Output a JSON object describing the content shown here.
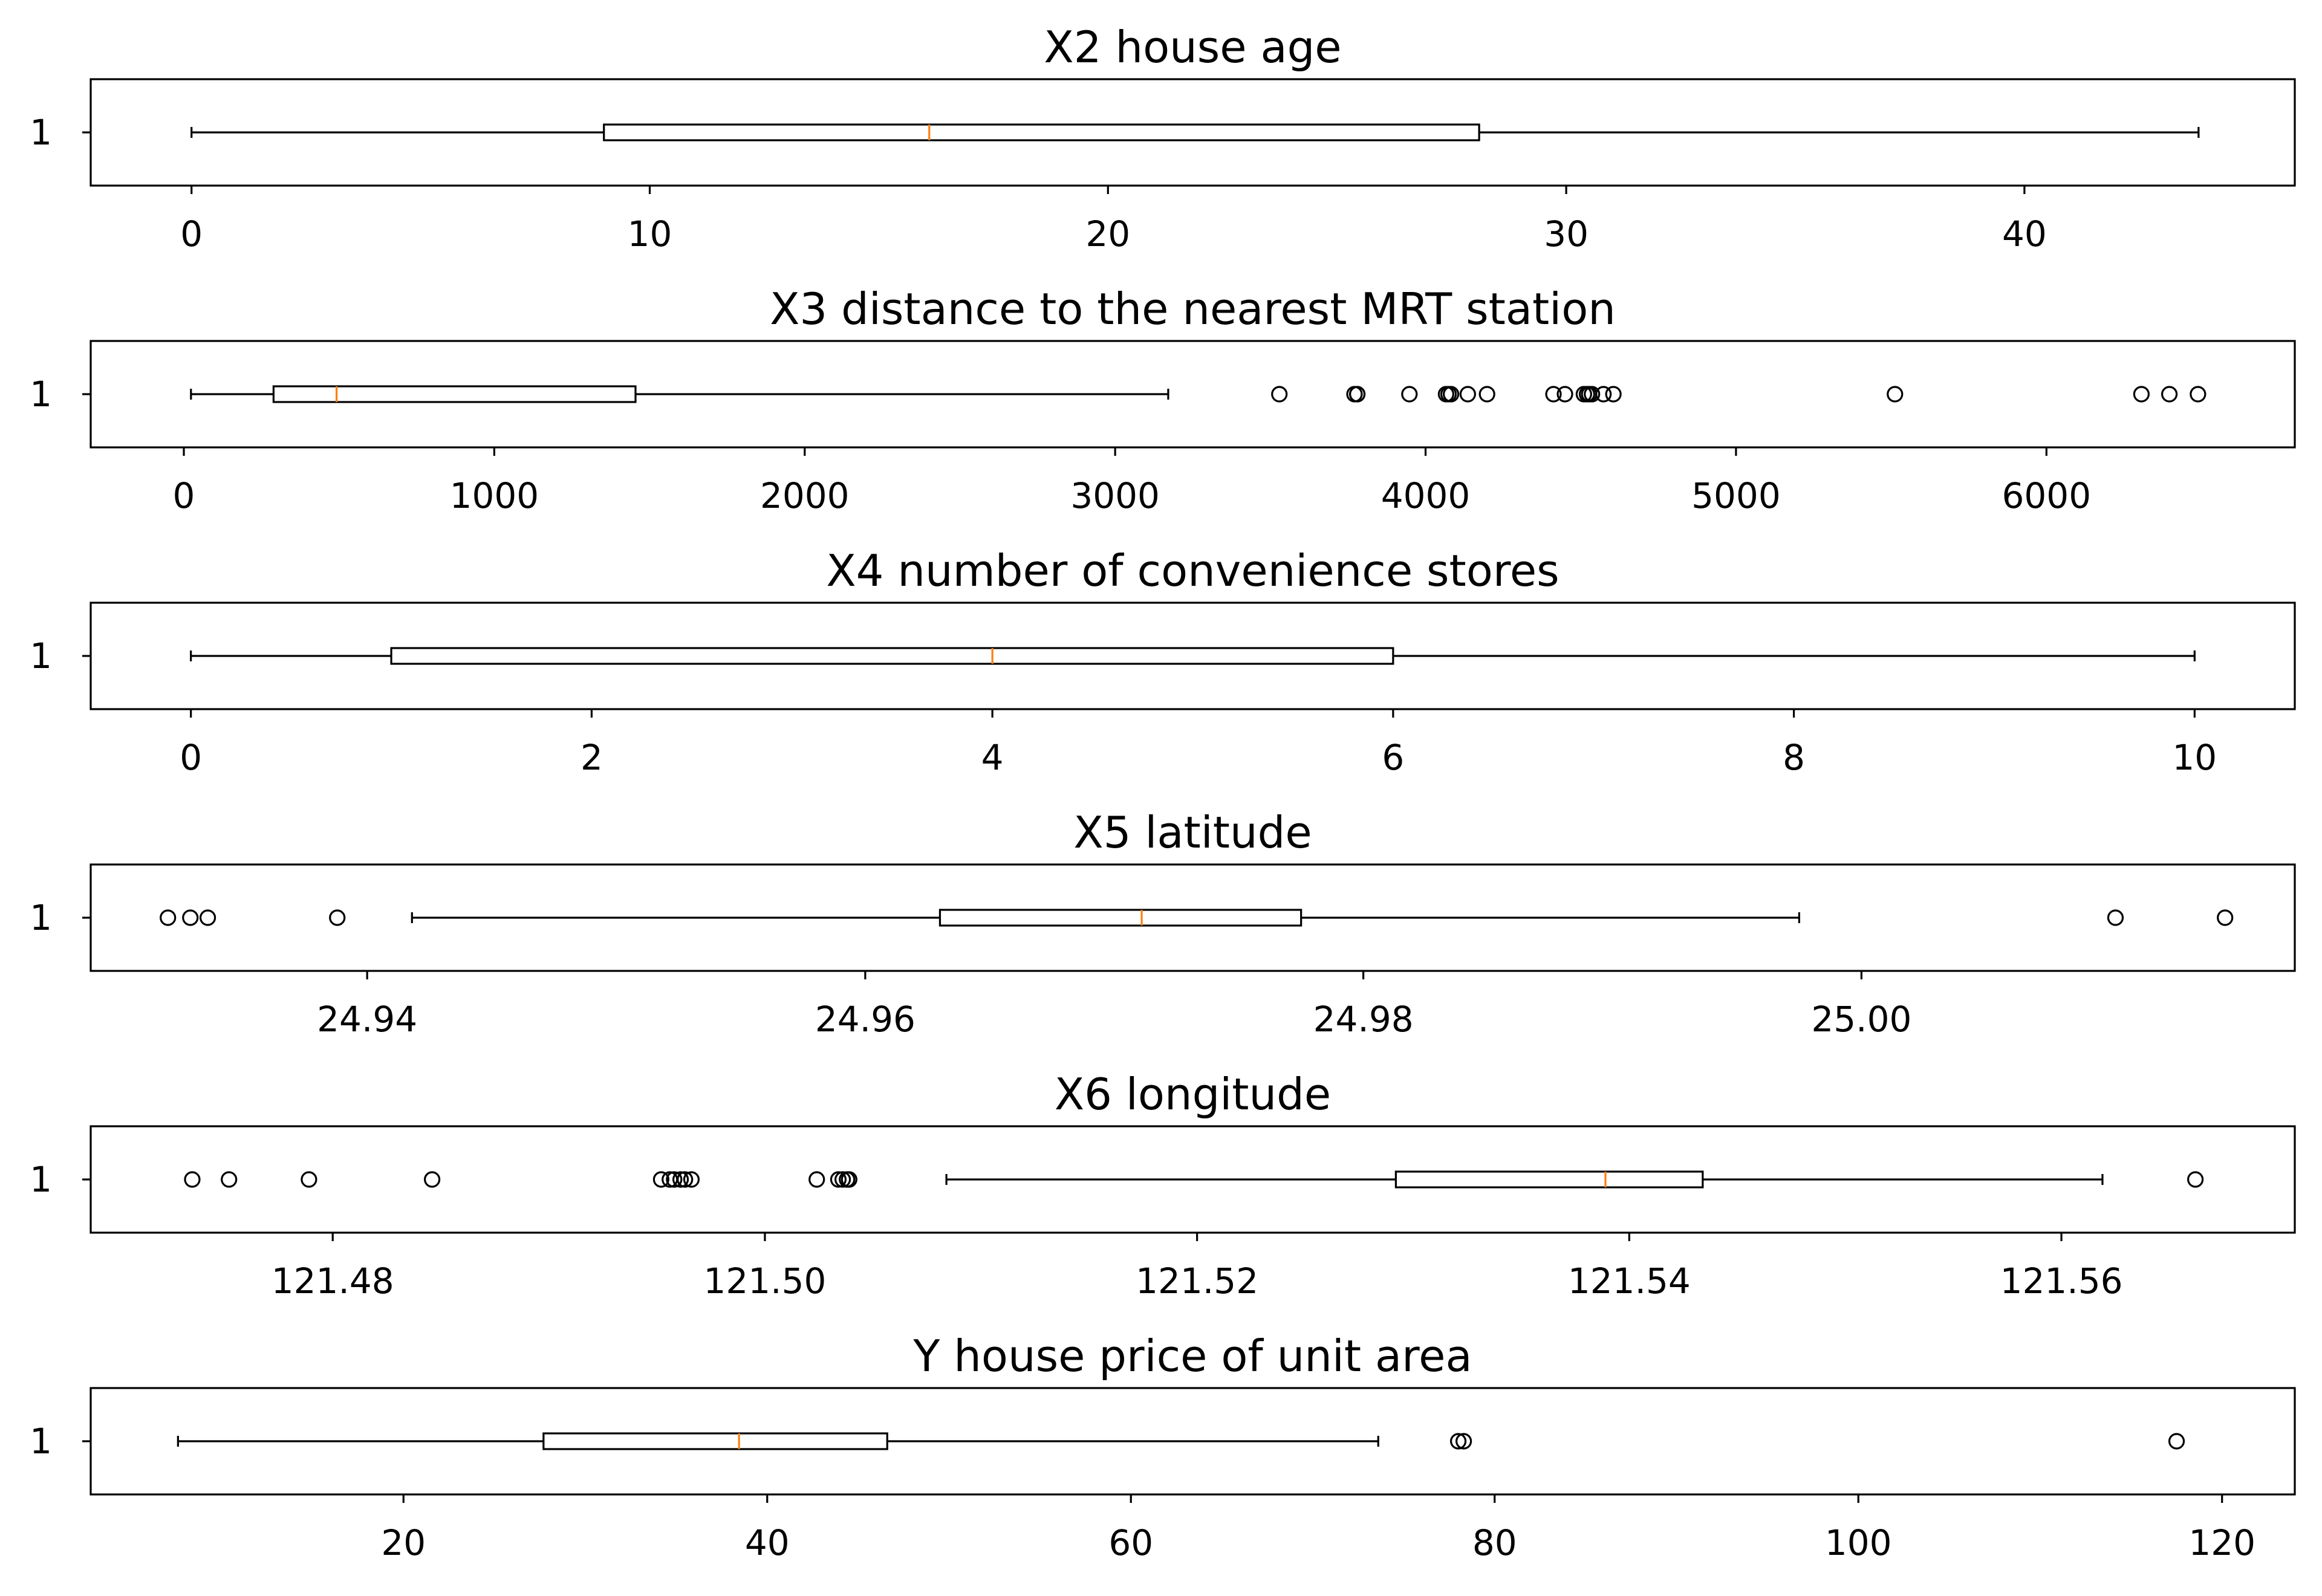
{
  "chart_data": [
    {
      "type": "boxplot",
      "title": "X2 house age",
      "category_label": "1",
      "xlim": [
        -2.2,
        45.9
      ],
      "xticks": [
        0,
        10,
        20,
        30,
        40
      ],
      "tick_labels": [
        "0",
        "10",
        "20",
        "30",
        "40"
      ],
      "whisker_low": 0,
      "q1": 9.0,
      "median": 16.1,
      "q3": 28.1,
      "whisker_high": 43.8,
      "outliers": []
    },
    {
      "type": "boxplot",
      "title": "X3 distance to the nearest MRT station",
      "category_label": "1",
      "xlim": [
        -300,
        6800
      ],
      "xticks": [
        0,
        1000,
        2000,
        3000,
        4000,
        5000,
        6000
      ],
      "tick_labels": [
        "0",
        "1000",
        "2000",
        "3000",
        "4000",
        "5000",
        "6000"
      ],
      "whisker_low": 23,
      "q1": 289,
      "median": 492,
      "q3": 1455,
      "whisker_high": 3171,
      "outliers": [
        3529,
        3771,
        3780,
        3780,
        3948,
        4066,
        4074,
        4082,
        4136,
        4198,
        4412,
        4449,
        4510,
        4520,
        4527,
        4536,
        4573,
        4605,
        5512,
        6306,
        6396,
        6488
      ]
    },
    {
      "type": "boxplot",
      "title": "X4 number of convenience stores",
      "category_label": "1",
      "xlim": [
        -0.5,
        10.5
      ],
      "xticks": [
        0,
        2,
        4,
        6,
        8,
        10
      ],
      "tick_labels": [
        "0",
        "2",
        "4",
        "6",
        "8",
        "10"
      ],
      "whisker_low": 0,
      "q1": 1,
      "median": 4,
      "q3": 6,
      "whisker_high": 10,
      "outliers": []
    },
    {
      "type": "boxplot",
      "title": "X5 latitude",
      "category_label": "1",
      "xlim": [
        24.9289,
        25.0174
      ],
      "xticks": [
        24.94,
        24.96,
        24.98,
        25.0
      ],
      "tick_labels": [
        "24.94",
        "24.96",
        "24.98",
        "25.00"
      ],
      "whisker_low": 24.9418,
      "q1": 24.963,
      "median": 24.9711,
      "q3": 24.9775,
      "whisker_high": 24.9975,
      "outliers": [
        24.932,
        24.9329,
        24.9336,
        24.9388,
        25.0102,
        25.0146
      ]
    },
    {
      "type": "boxplot",
      "title": "X6 longitude",
      "category_label": "1",
      "xlim": [
        121.4688,
        121.5708
      ],
      "xticks": [
        121.48,
        121.5,
        121.52,
        121.54,
        121.56
      ],
      "tick_labels": [
        "121.48",
        "121.50",
        "121.52",
        "121.54",
        "121.56"
      ],
      "whisker_low": 121.5084,
      "q1": 121.5292,
      "median": 121.5389,
      "q3": 121.5434,
      "whisker_high": 121.5619,
      "outliers": [
        121.4735,
        121.4752,
        121.4789,
        121.4846,
        121.4952,
        121.4956,
        121.4958,
        121.4961,
        121.4963,
        121.4966,
        121.5024,
        121.5034,
        121.5036,
        121.5038,
        121.5039,
        121.5662
      ]
    },
    {
      "type": "boxplot",
      "title": "Y house price of unit area",
      "category_label": "1",
      "xlim": [
        2.8,
        124.0
      ],
      "xticks": [
        20,
        40,
        60,
        80,
        100,
        120
      ],
      "tick_labels": [
        "20",
        "40",
        "60",
        "80",
        "100",
        "120"
      ],
      "whisker_low": 7.6,
      "q1": 27.7,
      "median": 38.45,
      "q3": 46.6,
      "whisker_high": 73.6,
      "outliers": [
        78.0,
        78.3,
        117.5
      ]
    }
  ]
}
